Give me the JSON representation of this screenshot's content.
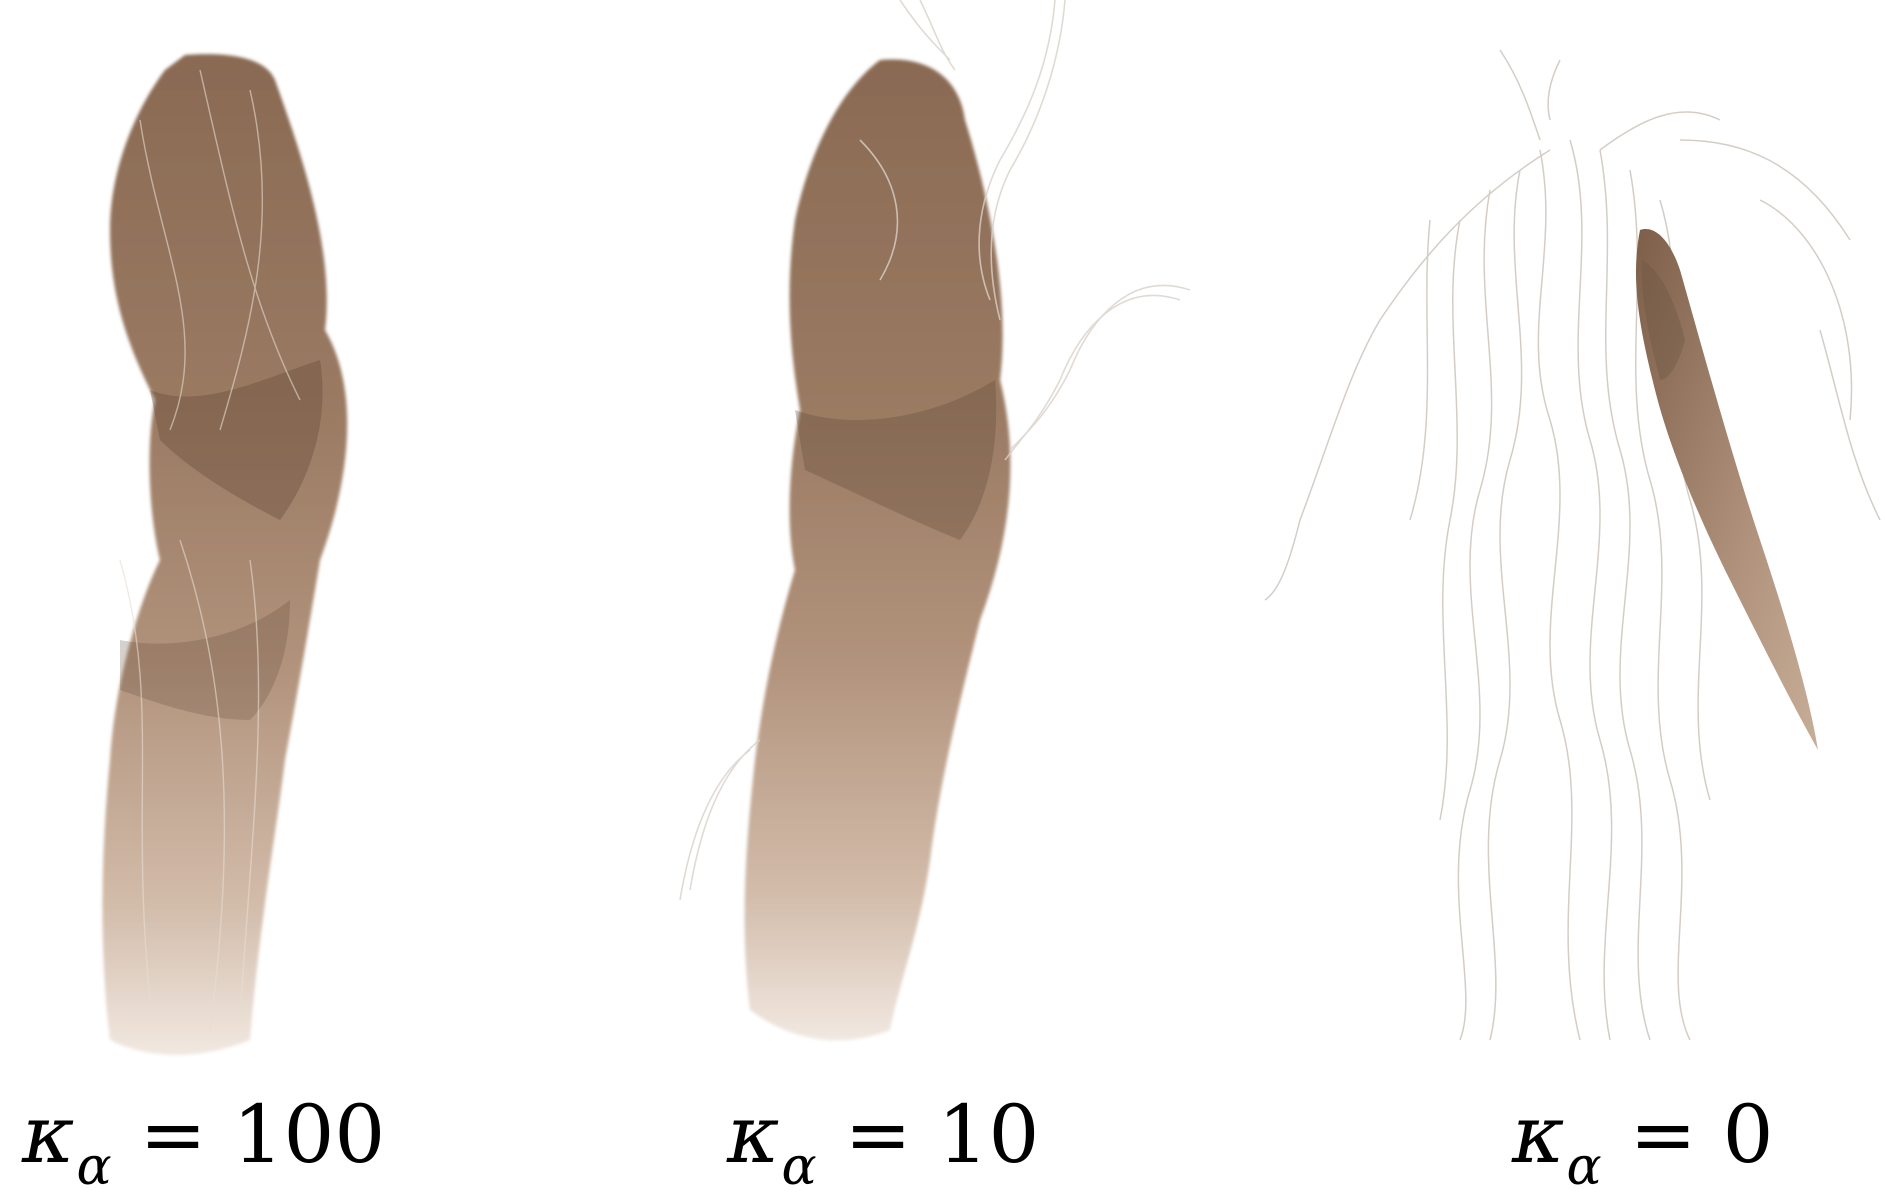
{
  "panels": [
    {
      "symbol": "κ",
      "subscript": "α",
      "operator": "=",
      "value": "100"
    },
    {
      "symbol": "κ",
      "subscript": "α",
      "operator": "=",
      "value": "10"
    },
    {
      "symbol": "κ",
      "subscript": "α",
      "operator": "=",
      "value": "0"
    }
  ],
  "colors": {
    "hair_dark": "#6b5443",
    "hair_mid": "#a08068",
    "hair_light": "#cdb7a3",
    "stray_strand": "#cfc8c0"
  }
}
